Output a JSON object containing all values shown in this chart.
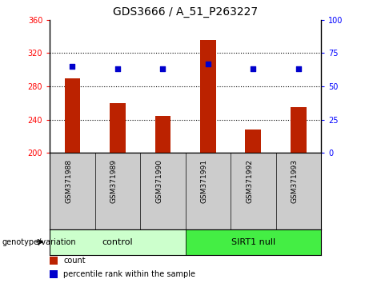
{
  "title": "GDS3666 / A_51_P263227",
  "categories": [
    "GSM371988",
    "GSM371989",
    "GSM371990",
    "GSM371991",
    "GSM371992",
    "GSM371993"
  ],
  "bar_values": [
    290,
    260,
    244,
    336,
    228,
    255
  ],
  "bar_bottom": 200,
  "dot_values_right": [
    65,
    63,
    63,
    67,
    63,
    63
  ],
  "left_ylim": [
    200,
    360
  ],
  "right_ylim": [
    0,
    100
  ],
  "left_yticks": [
    200,
    240,
    280,
    320,
    360
  ],
  "right_yticks": [
    0,
    25,
    50,
    75,
    100
  ],
  "bar_color": "#bb2200",
  "dot_color": "#0000cc",
  "groups": [
    {
      "label": "control",
      "span": [
        0,
        3
      ],
      "color": "#ccffcc"
    },
    {
      "label": "SIRT1 null",
      "span": [
        3,
        6
      ],
      "color": "#44ee44"
    }
  ],
  "legend_items": [
    {
      "color": "#bb2200",
      "label": "count"
    },
    {
      "color": "#0000cc",
      "label": "percentile rank within the sample"
    }
  ],
  "tick_label_area_color": "#cccccc",
  "figsize": [
    4.61,
    3.54
  ],
  "dpi": 100
}
